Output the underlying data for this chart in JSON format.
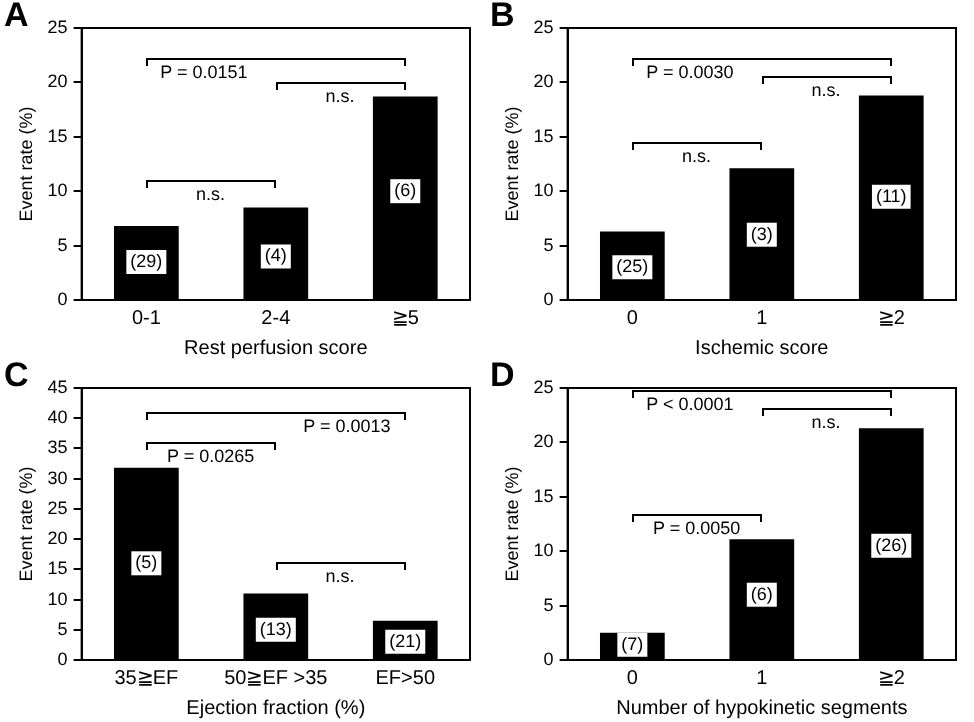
{
  "chart_data": [
    {
      "type": "bar",
      "title": "A",
      "xlabel": "Rest perfusion score",
      "ylabel": "Event rate (%)",
      "categories": [
        "0-1",
        "2-4",
        "≧5"
      ],
      "series": [
        {
          "color": "#000000",
          "values": [
            6.8,
            8.5,
            18.7
          ]
        }
      ],
      "ylim": [
        0,
        25
      ],
      "yticks": [
        0,
        5,
        10,
        15,
        20,
        25
      ],
      "grid": false,
      "legend": false,
      "annotations": [
        "P = 0.0151",
        "n.s.",
        "n.s.",
        {
          "text": "(29)",
          "x": "0-1",
          "y": 3.5
        },
        {
          "text": "(4)",
          "x": "2-4",
          "y": 4
        },
        {
          "text": "(6)",
          "x": "≧5",
          "y": 10
        }
      ]
    },
    {
      "type": "bar",
      "title": "B",
      "xlabel": "Ischemic score",
      "ylabel": "Event rate (%)",
      "categories": [
        "0",
        "1",
        "≧2"
      ],
      "series": [
        {
          "color": "#000000",
          "values": [
            6.3,
            12.1,
            18.8
          ]
        }
      ],
      "ylim": [
        0,
        25
      ],
      "yticks": [
        0,
        5,
        10,
        15,
        20,
        25
      ],
      "grid": false,
      "legend": false,
      "annotations": [
        "P = 0.0030",
        "n.s.",
        "n.s.",
        {
          "text": "(25)",
          "x": "0",
          "y": 3
        },
        {
          "text": "(3)",
          "x": "1",
          "y": 6
        },
        {
          "text": "(11)",
          "x": "≧2",
          "y": 9.5
        }
      ]
    },
    {
      "type": "bar",
      "title": "C",
      "xlabel": "Ejection fraction (%)",
      "ylabel": "Event rate (%)",
      "categories": [
        "35≧EF",
        "50≧EF >35",
        "EF>50"
      ],
      "series": [
        {
          "color": "#000000",
          "values": [
            31.8,
            11.0,
            6.5
          ]
        }
      ],
      "ylim": [
        0,
        45
      ],
      "yticks": [
        0,
        5,
        10,
        15,
        20,
        25,
        30,
        35,
        40,
        45
      ],
      "grid": false,
      "legend": false,
      "annotations": [
        "P = 0.0013",
        "P = 0.0265",
        "n.s.",
        {
          "text": "(5)",
          "x": "35≧EF",
          "y": 16
        },
        {
          "text": "(13)",
          "x": "50≧EF >35",
          "y": 5
        },
        {
          "text": "(21)",
          "x": "EF>50",
          "y": 3
        }
      ]
    },
    {
      "type": "bar",
      "title": "D",
      "xlabel": "Number of hypokinetic segments",
      "ylabel": "Event rate (%)",
      "categories": [
        "0",
        "1",
        "≧2"
      ],
      "series": [
        {
          "color": "#000000",
          "values": [
            2.5,
            11.1,
            21.3
          ]
        }
      ],
      "ylim": [
        0,
        25
      ],
      "yticks": [
        0,
        5,
        10,
        15,
        20,
        25
      ],
      "grid": false,
      "legend": false,
      "annotations": [
        "P < 0.0001",
        "n.s.",
        "P = 0.0050",
        {
          "text": "(7)",
          "x": "0",
          "y": 1.4
        },
        {
          "text": "(6)",
          "x": "1",
          "y": 6
        },
        {
          "text": "(26)",
          "x": "≧2",
          "y": 10.5
        }
      ]
    }
  ]
}
